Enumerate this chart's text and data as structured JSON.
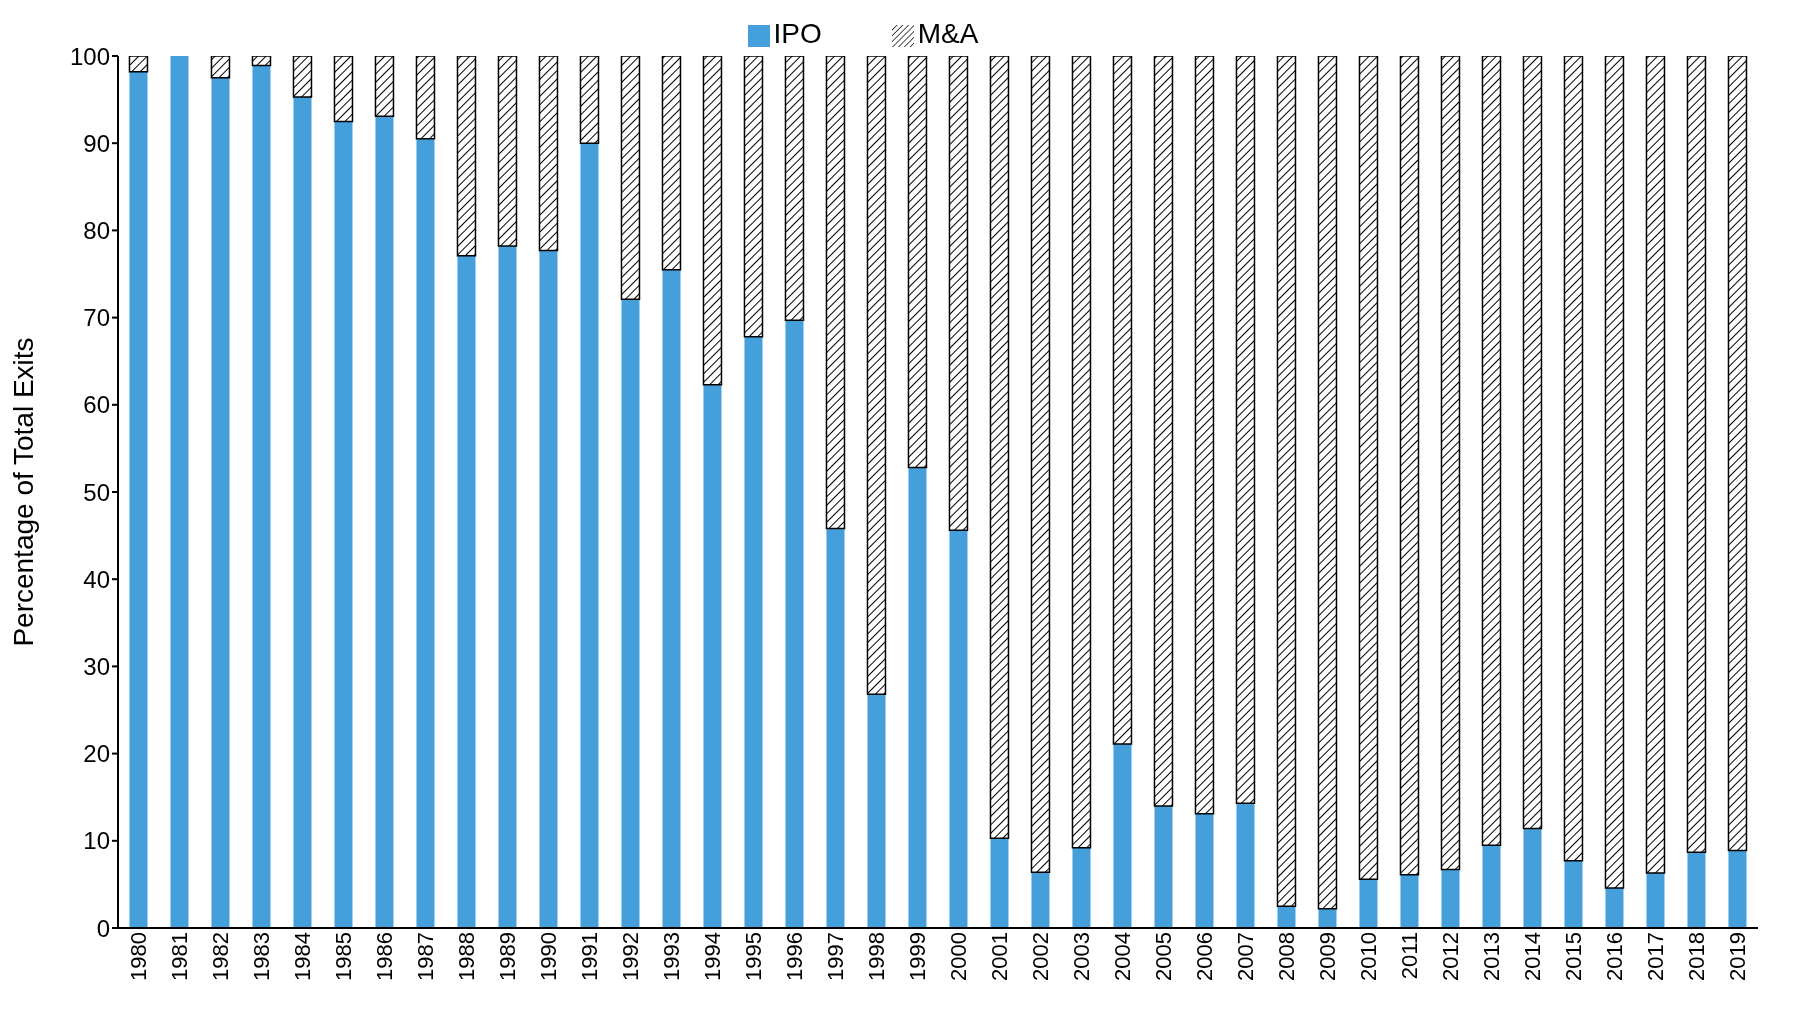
{
  "chart_data": {
    "type": "bar",
    "stacked": true,
    "ylabel": "Percentage of Total Exits",
    "categories": [
      "1980",
      "1981",
      "1982",
      "1983",
      "1984",
      "1985",
      "1986",
      "1987",
      "1988",
      "1989",
      "1990",
      "1991",
      "1992",
      "1993",
      "1994",
      "1995",
      "1996",
      "1997",
      "1998",
      "1999",
      "2000",
      "2001",
      "2002",
      "2003",
      "2004",
      "2005",
      "2006",
      "2007",
      "2008",
      "2009",
      "2010",
      "2011",
      "2012",
      "2013",
      "2014",
      "2015",
      "2016",
      "2017",
      "2018",
      "2019"
    ],
    "series": [
      {
        "name": "IPO",
        "color": "#449fdb",
        "values": [
          98.2,
          100,
          97.5,
          98.9,
          95.3,
          92.5,
          93.1,
          90.5,
          77.1,
          78.2,
          77.7,
          90,
          72.1,
          75.5,
          62.3,
          67.8,
          69.7,
          45.8,
          26.8,
          52.8,
          45.6,
          10.3,
          6.4,
          9.2,
          21.1,
          14,
          13.1,
          14.3,
          2.5,
          2.2,
          5.6,
          6.1,
          6.7,
          9.5,
          11.4,
          7.7,
          4.6,
          6.3,
          8.7,
          8.9
        ]
      },
      {
        "name": "M&A",
        "color": "#000000",
        "values": [
          1.8,
          0,
          2.5,
          1.1,
          4.7,
          7.5,
          6.9,
          9.5,
          22.9,
          21.8,
          22.3,
          10,
          27.9,
          24.5,
          37.7,
          32.2,
          30.3,
          54.2,
          73.2,
          47.2,
          54.4,
          89.7,
          93.6,
          90.8,
          78.9,
          86,
          86.9,
          85.7,
          97.5,
          97.8,
          94.4,
          93.9,
          93.3,
          90.5,
          88.6,
          92.3,
          95.4,
          93.7,
          91.3,
          91.1
        ]
      }
    ],
    "ylim": [
      0,
      100
    ],
    "yticks": [
      0,
      10,
      20,
      30,
      40,
      50,
      60,
      70,
      80,
      90,
      100
    ],
    "grid": false,
    "legend": "top"
  }
}
